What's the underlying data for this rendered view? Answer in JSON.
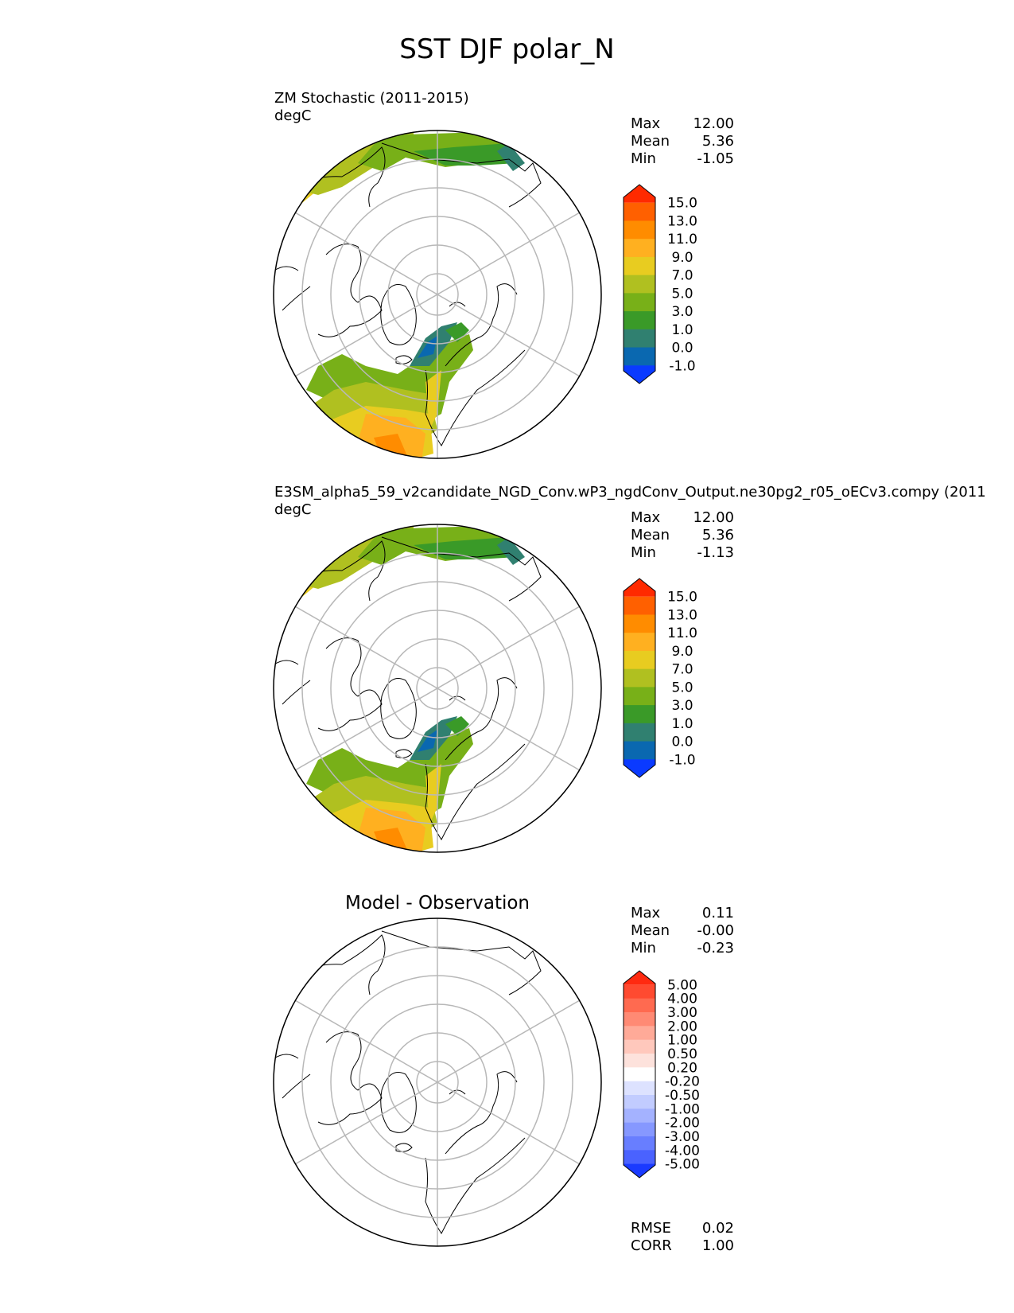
{
  "title": "SST DJF polar_N",
  "panels": [
    {
      "title": "ZM Stochastic (2011-2015)",
      "units": "degC",
      "stats": [
        {
          "label": "Max",
          "value": "12.00"
        },
        {
          "label": "Mean",
          "value": "5.36"
        },
        {
          "label": "Min",
          "value": "-1.05"
        }
      ],
      "colorbar": {
        "ticks": [
          "15.0",
          "13.0",
          "11.0",
          "9.0",
          "7.0",
          "5.0",
          "3.0",
          "1.0",
          "0.0",
          "-1.0"
        ],
        "colors": [
          "#ff2a00",
          "#ff6000",
          "#ff8c00",
          "#ffb020",
          "#e8cc20",
          "#b0c020",
          "#78b018",
          "#3a9a28",
          "#308070",
          "#0a68b0",
          "#0a3aff"
        ]
      }
    },
    {
      "title": "E3SM_alpha5_59_v2candidate_NGD_Conv.wP3_ngdConv_Output.ne30pg2_r05_oECv3.compy (2011",
      "units": "degC",
      "stats": [
        {
          "label": "Max",
          "value": "12.00"
        },
        {
          "label": "Mean",
          "value": "5.36"
        },
        {
          "label": "Min",
          "value": "-1.13"
        }
      ],
      "colorbar": {
        "ticks": [
          "15.0",
          "13.0",
          "11.0",
          "9.0",
          "7.0",
          "5.0",
          "3.0",
          "1.0",
          "0.0",
          "-1.0"
        ],
        "colors": [
          "#ff2a00",
          "#ff6000",
          "#ff8c00",
          "#ffb020",
          "#e8cc20",
          "#b0c020",
          "#78b018",
          "#3a9a28",
          "#308070",
          "#0a68b0",
          "#0a3aff"
        ]
      }
    },
    {
      "title": "Model - Observation",
      "stats": [
        {
          "label": "Max",
          "value": "0.11"
        },
        {
          "label": "Mean",
          "value": "-0.00"
        },
        {
          "label": "Min",
          "value": "-0.23"
        }
      ],
      "colorbar": {
        "ticks": [
          "5.00",
          "4.00",
          "3.00",
          "2.00",
          "1.00",
          "0.50",
          "0.20",
          "-0.20",
          "-0.50",
          "-1.00",
          "-2.00",
          "-3.00",
          "-4.00",
          "-5.00"
        ],
        "colors": [
          "#ff2a10",
          "#ff4a30",
          "#ff6a50",
          "#ff8a74",
          "#ffaa98",
          "#ffc8bc",
          "#fde2dc",
          "#ffffff",
          "#dde2ff",
          "#c2ccff",
          "#a4b2ff",
          "#8698ff",
          "#687eff",
          "#4a62ff",
          "#1a3aff"
        ]
      },
      "metrics": [
        {
          "label": "RMSE",
          "value": "0.02"
        },
        {
          "label": "CORR",
          "value": "1.00"
        }
      ]
    }
  ]
}
